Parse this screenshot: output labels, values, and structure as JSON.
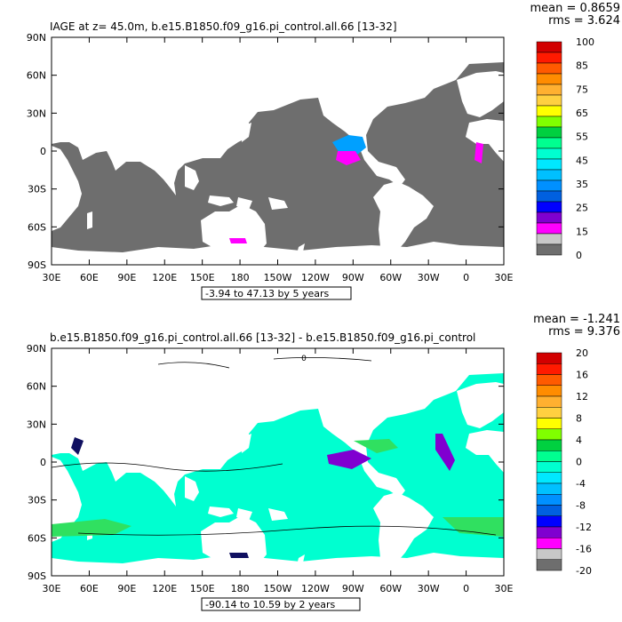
{
  "top_panel": {
    "title": "IAGE at z=  45.0m, b.e15.B1850.f09_g16.pi_control.all.66 [13-32]",
    "mean_text": "mean = 0.8659",
    "rms_text": "rms = 3.624",
    "range_text": "-3.94 to 47.13 by 5 years",
    "colorbar": {
      "labels": [
        "100",
        "85",
        "75",
        "65",
        "55",
        "45",
        "35",
        "25",
        "15",
        "0"
      ],
      "colors": [
        "#d20000",
        "#ff1a00",
        "#ff5a00",
        "#ff8c00",
        "#ffb030",
        "#ffd040",
        "#ffff00",
        "#80ff00",
        "#00d040",
        "#00ff90",
        "#00ffd0",
        "#00e8ff",
        "#00c0ff",
        "#0090ff",
        "#0060e0",
        "#0000ff",
        "#8000d0",
        "#ff00ff",
        "#c8c8c8",
        "#6e6e6e"
      ]
    }
  },
  "bottom_panel": {
    "title": "b.e15.B1850.f09_g16.pi_control.all.66 [13-32] - b.e15.B1850.f09_g16.pi_control",
    "mean_text": "mean = -1.241",
    "rms_text": "rms = 9.376",
    "range_text": "-90.14 to 10.59 by 2 years",
    "contour_label": "0",
    "colorbar": {
      "labels": [
        "20",
        "16",
        "12",
        "8",
        "4",
        "0",
        "-4",
        "-8",
        "-12",
        "-16",
        "-20"
      ],
      "colors": [
        "#d20000",
        "#ff1a00",
        "#ff5a00",
        "#ff8c00",
        "#ffb030",
        "#ffd040",
        "#ffff00",
        "#80ff00",
        "#00d040",
        "#00ff90",
        "#00ffd0",
        "#00e8ff",
        "#00c0ff",
        "#0090ff",
        "#0060e0",
        "#0000ff",
        "#8000d0",
        "#ff00ff",
        "#c8c8c8",
        "#6e6e6e"
      ]
    }
  },
  "axes": {
    "lat_labels": [
      "90N",
      "60N",
      "30N",
      "0",
      "30S",
      "60S",
      "90S"
    ],
    "lon_labels": [
      "30E",
      "60E",
      "90E",
      "120E",
      "150E",
      "180",
      "150W",
      "120W",
      "90W",
      "60W",
      "30W",
      "0",
      "30E"
    ]
  },
  "colors": {
    "ocean_top": "#6e6e6e",
    "ocean_bottom": "#00ffd0",
    "land": "#ffffff",
    "anomaly_green": "#30e060",
    "anomaly_blue": "#00a0ff",
    "anomaly_purple": "#8000d0",
    "anomaly_magenta": "#ff00ff",
    "anomaly_navy": "#101060"
  }
}
